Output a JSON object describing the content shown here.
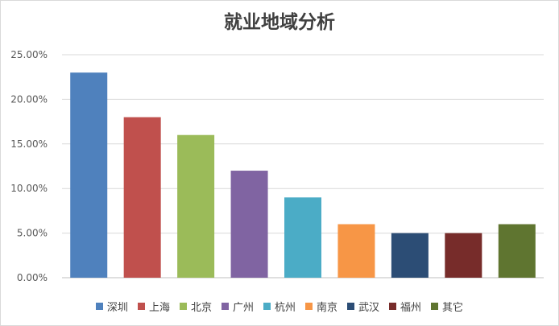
{
  "chart_data": {
    "type": "bar",
    "title": "就业地域分析",
    "categories": [
      "深圳",
      "上海",
      "北京",
      "广州",
      "杭州",
      "南京",
      "武汉",
      "福州",
      "其它"
    ],
    "values": [
      0.23,
      0.18,
      0.16,
      0.12,
      0.09,
      0.06,
      0.05,
      0.05,
      0.06
    ],
    "colors": [
      "#4F81BD",
      "#C0504D",
      "#9BBB59",
      "#8064A2",
      "#4BACC6",
      "#F79646",
      "#2C4D75",
      "#772C2A",
      "#5F7530"
    ],
    "y_ticks": [
      "0.00%",
      "5.00%",
      "10.00%",
      "15.00%",
      "20.00%",
      "25.00%"
    ],
    "ylim": [
      0,
      0.25
    ],
    "grid": true,
    "legend_position": "bottom",
    "xlabel": "",
    "ylabel": ""
  },
  "legend": {
    "items": [
      {
        "label": "深圳",
        "color": "#4F81BD"
      },
      {
        "label": "上海",
        "color": "#C0504D"
      },
      {
        "label": "北京",
        "color": "#9BBB59"
      },
      {
        "label": "广州",
        "color": "#8064A2"
      },
      {
        "label": "杭州",
        "color": "#4BACC6"
      },
      {
        "label": "南京",
        "color": "#F79646"
      },
      {
        "label": "武汉",
        "color": "#2C4D75"
      },
      {
        "label": "福州",
        "color": "#772C2A"
      },
      {
        "label": "其它",
        "color": "#5F7530"
      }
    ]
  }
}
